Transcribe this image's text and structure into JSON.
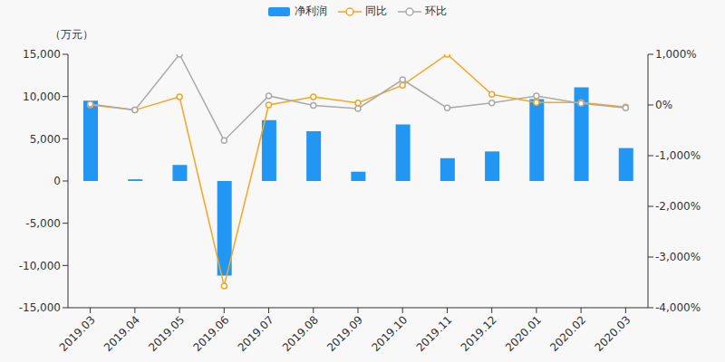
{
  "chart_data": {
    "type": "bar",
    "ylabel": "（万元）",
    "categories": [
      "2019.03",
      "2019.04",
      "2019.05",
      "2019.06",
      "2019.07",
      "2019.08",
      "2019.09",
      "2019.10",
      "2019.11",
      "2019.12",
      "2020.01",
      "2020.02",
      "2020.03"
    ],
    "series": [
      {
        "name": "净利润",
        "type": "bar",
        "color": "#2196f3",
        "values": [
          9500,
          200,
          1900,
          -11200,
          7200,
          5900,
          1100,
          6700,
          2700,
          3500,
          9700,
          11100,
          3900
        ]
      },
      {
        "name": "同比",
        "type": "line",
        "axis": "y2",
        "color": "#f5a623",
        "marker": "circle",
        "values": [
          0,
          -100,
          160,
          -3570,
          0,
          160,
          40,
          390,
          1000,
          210,
          50,
          50,
          -40
        ]
      },
      {
        "name": "环比",
        "type": "line",
        "axis": "y2",
        "color": "#aaaaaa",
        "marker": "circle",
        "values": [
          20,
          -100,
          1000,
          -700,
          180,
          -10,
          -70,
          500,
          -60,
          40,
          180,
          30,
          -60
        ]
      }
    ],
    "ylim": [
      -15000,
      15000
    ],
    "yticks": [
      {
        "value": -15000,
        "label": "-15,000"
      },
      {
        "value": -10000,
        "label": "-10,000"
      },
      {
        "value": -5000,
        "label": "-5,000"
      },
      0,
      {
        "value": 5000,
        "label": "5,000"
      },
      {
        "value": 10000,
        "label": "10,000"
      },
      {
        "value": 15000,
        "label": "15,000"
      }
    ],
    "y2lim": [
      -4000,
      1000
    ],
    "y2ticks": [
      {
        "value": -4000,
        "label": "-4,000%"
      },
      {
        "value": -3000,
        "label": "-3,000%"
      },
      {
        "value": -2000,
        "label": "-2,000%"
      },
      {
        "value": -1000,
        "label": "-1,000%"
      },
      {
        "value": 0,
        "label": "0%"
      },
      {
        "value": 1000,
        "label": "1,000%"
      }
    ],
    "grid": false,
    "legend": "top"
  }
}
